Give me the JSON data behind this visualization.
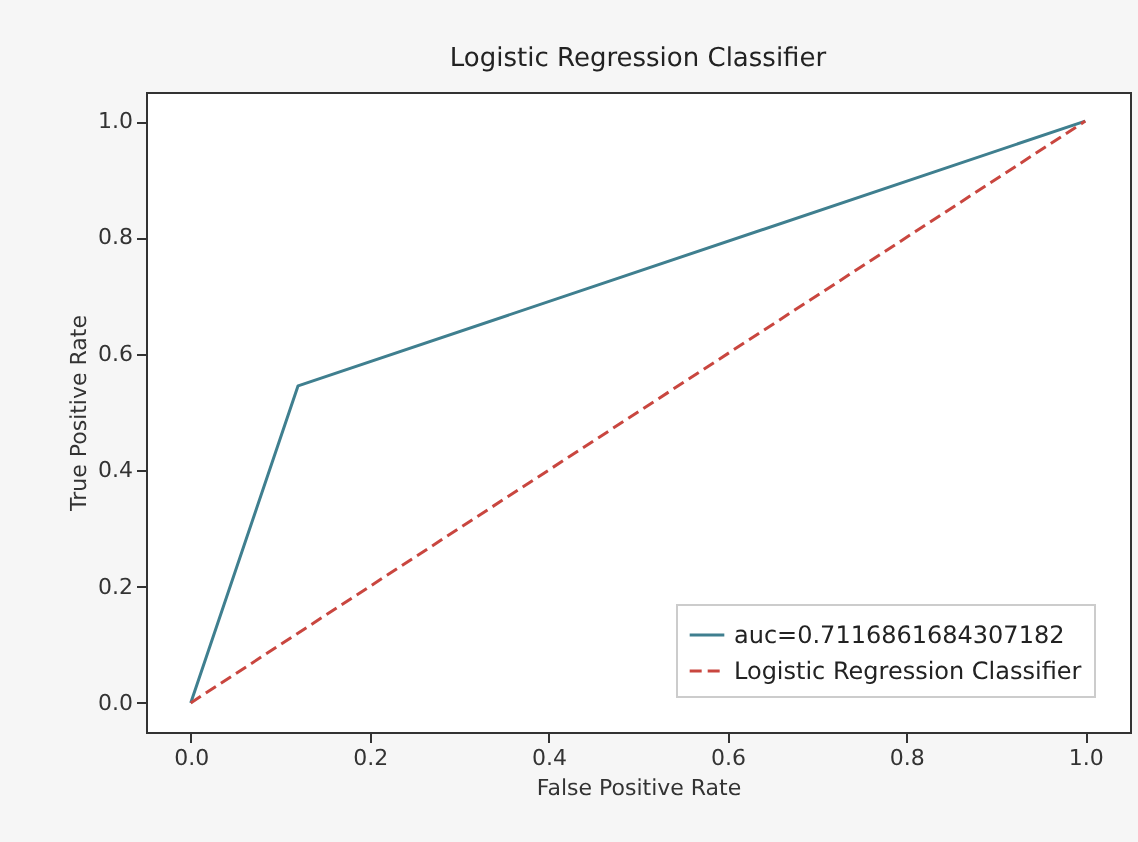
{
  "chart_data": {
    "type": "line",
    "title": "Logistic Regression Classifier",
    "xlabel": "False Positive Rate",
    "ylabel": "True Positive Rate",
    "series": [
      {
        "name": "auc=0.7116861684307182",
        "color": "#3f7f8f",
        "x": [
          0,
          0.12,
          1
        ],
        "values": [
          0,
          0.545,
          1
        ],
        "line_style": "solid"
      },
      {
        "name": "Logistic Regression Classifier",
        "color": "#c9463f",
        "x": [
          0,
          1
        ],
        "values": [
          0,
          1
        ],
        "line_style": "dashed"
      }
    ],
    "xlim": [
      -0.05,
      1.05
    ],
    "ylim": [
      -0.05,
      1.05
    ],
    "xticks": [
      {
        "value": 0,
        "label": "0.0"
      },
      0.2,
      0.4,
      0.6,
      0.8,
      {
        "value": 1,
        "label": "1.0"
      }
    ],
    "yticks": [
      {
        "value": 0,
        "label": "0.0"
      },
      0.2,
      0.4,
      0.6,
      0.8,
      {
        "value": 1,
        "label": "1.0"
      }
    ],
    "grid": false,
    "legend": "bottom right"
  }
}
